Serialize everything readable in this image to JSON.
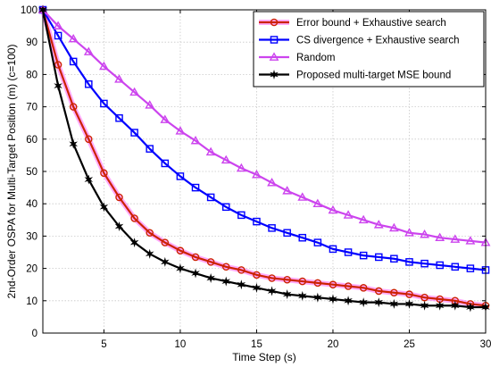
{
  "chart_data": {
    "type": "line",
    "title": "",
    "xlabel": "Time Step (s)",
    "ylabel": "2nd-Order OSPA for Multi-Target Position (m) (c=100)",
    "xlim": [
      1,
      30
    ],
    "ylim": [
      0,
      100
    ],
    "xticks": [
      5,
      10,
      15,
      20,
      25,
      30
    ],
    "yticks": [
      0,
      10,
      20,
      30,
      40,
      50,
      60,
      70,
      80,
      90,
      100
    ],
    "grid": true,
    "legend_position": "top-right",
    "x": [
      1,
      2,
      3,
      4,
      5,
      6,
      7,
      8,
      9,
      10,
      11,
      12,
      13,
      14,
      15,
      16,
      17,
      18,
      19,
      20,
      21,
      22,
      23,
      24,
      25,
      26,
      27,
      28,
      29,
      30
    ],
    "series": [
      {
        "name": "Error bound + Exhaustive search",
        "color": "#cc2200",
        "glow": "#ff66ff",
        "marker": "circle",
        "values": [
          100,
          83,
          70,
          60,
          49.5,
          42,
          35.5,
          31,
          28,
          25.5,
          23.5,
          22,
          20.5,
          19.5,
          18,
          17,
          16.5,
          16,
          15.5,
          15,
          14.5,
          14,
          13,
          12.5,
          12,
          11,
          10.5,
          10,
          9,
          8.5
        ]
      },
      {
        "name": "CS divergence + Exhaustive search",
        "color": "#0000ff",
        "glow": "",
        "marker": "square",
        "values": [
          100,
          92,
          84,
          77,
          71,
          66.5,
          62,
          57,
          52.5,
          48.5,
          45,
          42,
          39,
          36.5,
          34.5,
          32.5,
          31,
          29.5,
          28,
          26,
          25,
          24,
          23.5,
          23,
          22,
          21.5,
          21,
          20.5,
          20,
          19.5
        ]
      },
      {
        "name": "Random",
        "color": "#cc44ee",
        "glow": "",
        "marker": "triangle",
        "values": [
          100,
          95,
          91,
          87,
          82.5,
          78.5,
          74.5,
          70.5,
          66,
          62.5,
          59.5,
          56,
          53.5,
          51,
          49,
          46.5,
          44,
          42,
          40,
          38,
          36.5,
          35,
          33.5,
          32.5,
          31,
          30.5,
          29.5,
          29,
          28.5,
          28
        ]
      },
      {
        "name": "Proposed multi-target MSE bound",
        "color": "#000000",
        "glow": "",
        "marker": "star",
        "values": [
          100,
          76.5,
          58.5,
          47.5,
          39,
          33,
          28,
          24.5,
          22,
          20,
          18.5,
          17,
          16,
          15,
          14,
          13,
          12,
          11.5,
          11,
          10.5,
          10,
          9.5,
          9.5,
          9,
          9,
          8.5,
          8.5,
          8.5,
          8,
          8
        ]
      }
    ]
  }
}
